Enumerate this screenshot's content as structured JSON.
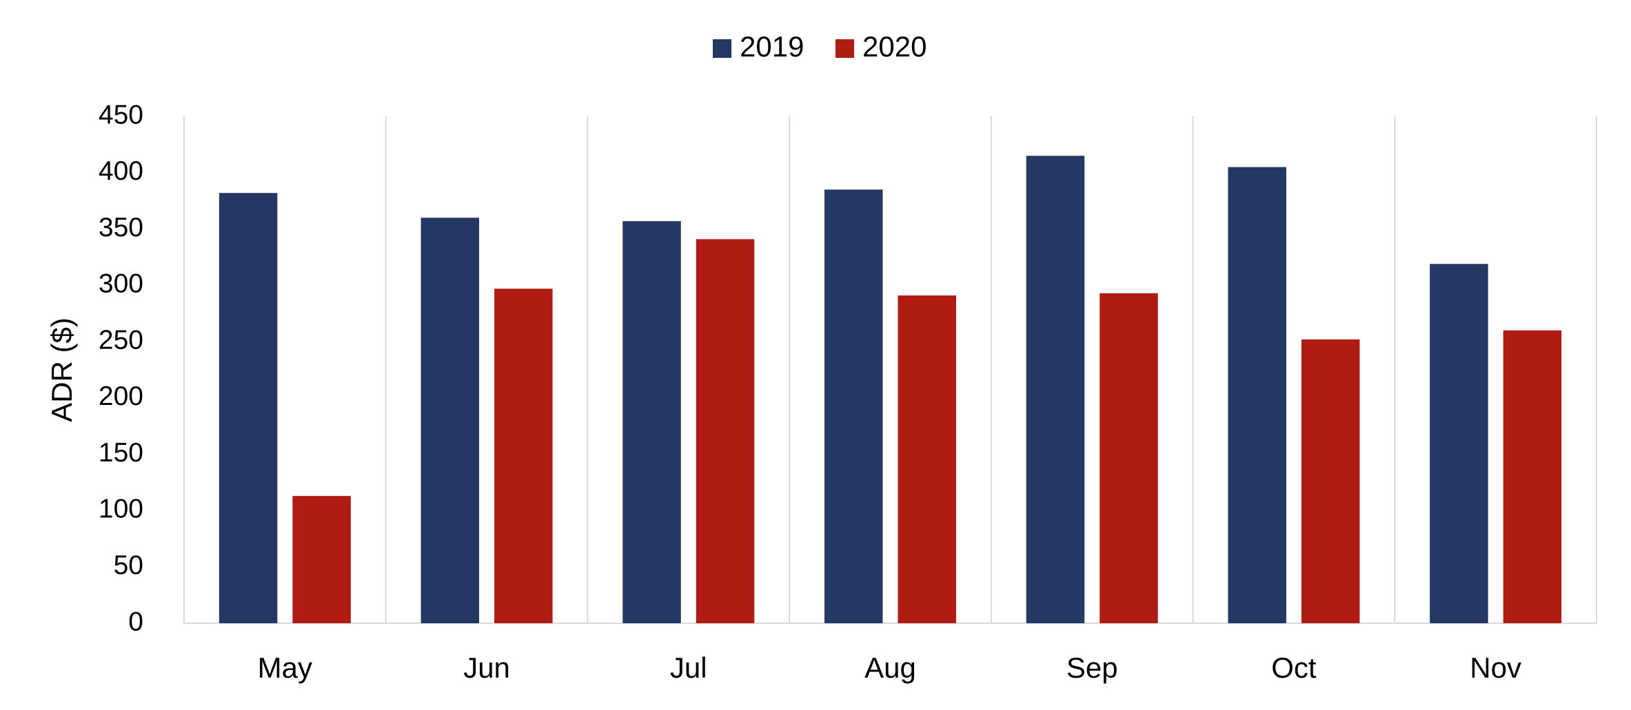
{
  "chart_data": {
    "type": "bar",
    "y_label": "ADR ($)",
    "categories": [
      "May",
      "Jun",
      "Jul",
      "Aug",
      "Sep",
      "Oct",
      "Nov"
    ],
    "series": [
      {
        "name": "2019",
        "color": "#253864",
        "values": [
          382,
          360,
          357,
          385,
          415,
          405,
          319
        ]
      },
      {
        "name": "2020",
        "color": "#b01c14",
        "values": [
          113,
          297,
          341,
          291,
          293,
          252,
          260
        ]
      }
    ],
    "ylim": [
      0,
      450
    ],
    "yticks": [
      0,
      50,
      100,
      150,
      200,
      250,
      300,
      350,
      400,
      450
    ],
    "legend": "top"
  }
}
